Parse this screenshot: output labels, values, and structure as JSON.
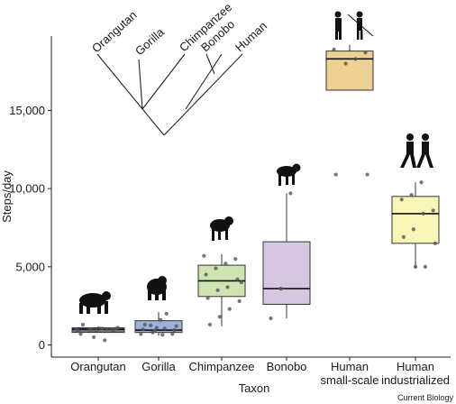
{
  "chart_data": {
    "type": "box",
    "title": "",
    "xlabel": "Taxon",
    "ylabel": "Steps/day",
    "ylim": [
      -800,
      20500
    ],
    "yticks": [
      0,
      5000,
      10000,
      15000
    ],
    "ytick_labels": [
      "0",
      "5,000",
      "10,000",
      "15,000"
    ],
    "grid": false,
    "legend": "none",
    "categories": [
      {
        "label": "Orangutan",
        "color": "#7d6f8f",
        "q1": 800,
        "median": 1000,
        "q3": 1100,
        "whisker_low": 800,
        "whisker_high": 1200,
        "points": [
          1000,
          1000,
          1050,
          1000,
          900,
          950,
          1050,
          1000,
          700,
          1050,
          300,
          500,
          1300,
          1100,
          1000,
          950
        ]
      },
      {
        "label": "Gorilla",
        "color": "#9fb0d6",
        "q1": 800,
        "median": 950,
        "q3": 1550,
        "whisker_low": 600,
        "whisker_high": 2100,
        "points": [
          1600,
          1250,
          700,
          700,
          650,
          800,
          1000,
          950,
          1050,
          900,
          1300,
          1200,
          2000,
          1100
        ]
      },
      {
        "label": "Chimpanzee",
        "color": "#cfe4b3",
        "q1": 3100,
        "median": 4100,
        "q3": 5100,
        "whisker_low": 1200,
        "whisker_high": 5800,
        "points": [
          5700,
          5500,
          5200,
          4900,
          4500,
          4200,
          3700,
          3500,
          3000,
          2800,
          2300,
          1800,
          1300,
          4000
        ]
      },
      {
        "label": "Bonobo",
        "color": "#d5c7e2",
        "q1": 2600,
        "median": 3600,
        "q3": 6600,
        "whisker_low": 1700,
        "whisker_high": 9700,
        "points": [
          9700,
          3600,
          1700
        ]
      },
      {
        "label": "Human\nsmall-scale",
        "color": "#efd093",
        "q1": 16300,
        "median": 18300,
        "q3": 18800,
        "whisker_low": 16300,
        "whisker_high": 19200,
        "points": [
          18900,
          18700,
          18300,
          18000,
          10900,
          10900
        ]
      },
      {
        "label": "Human\nindustrialized",
        "color": "#f7f6b6",
        "q1": 6500,
        "median": 8400,
        "q3": 9500,
        "whisker_low": 4900,
        "whisker_high": 10400,
        "points": [
          10400,
          9600,
          9300,
          8600,
          8400,
          7400,
          6900,
          6500,
          5000,
          5000
        ]
      }
    ],
    "cladogram_labels": [
      "Orangutan",
      "Gorilla",
      "Chimpanzee",
      "Bonobo",
      "Human"
    ]
  },
  "credit": "Current Biology",
  "icons": [
    "orangutan-silhouette",
    "gorilla-silhouette",
    "chimpanzee-silhouette",
    "bonobo-silhouette",
    "hunter-gatherers-silhouette",
    "walking-humans-silhouette"
  ]
}
